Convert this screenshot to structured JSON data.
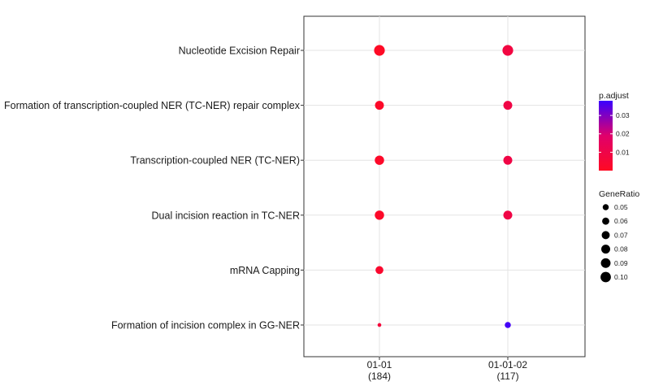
{
  "chart_data": {
    "type": "scatter",
    "categories_y": [
      "Nucleotide Excision Repair",
      "Formation of transcription-coupled NER (TC-NER) repair complex",
      "Transcription-coupled NER (TC-NER)",
      "Dual incision reaction in TC-NER",
      "mRNA Capping",
      "Formation of incision complex in GG-NER"
    ],
    "categories_x": [
      {
        "label": "01-01",
        "count": "(184)"
      },
      {
        "label": "01-01-02",
        "count": "(117)"
      }
    ],
    "points": [
      {
        "y": "Nucleotide Excision Repair",
        "x": "01-01",
        "gene_ratio": 0.105,
        "p_adjust": 0.0005
      },
      {
        "y": "Nucleotide Excision Repair",
        "x": "01-01-02",
        "gene_ratio": 0.105,
        "p_adjust": 0.008
      },
      {
        "y": "Formation of transcription-coupled NER (TC-NER) repair complex",
        "x": "01-01",
        "gene_ratio": 0.08,
        "p_adjust": 0.0015
      },
      {
        "y": "Formation of transcription-coupled NER (TC-NER) repair complex",
        "x": "01-01-02",
        "gene_ratio": 0.08,
        "p_adjust": 0.009
      },
      {
        "y": "Transcription-coupled NER (TC-NER)",
        "x": "01-01",
        "gene_ratio": 0.085,
        "p_adjust": 0.0015
      },
      {
        "y": "Transcription-coupled NER (TC-NER)",
        "x": "01-01-02",
        "gene_ratio": 0.08,
        "p_adjust": 0.009
      },
      {
        "y": "Dual incision reaction in TC-NER",
        "x": "01-01",
        "gene_ratio": 0.085,
        "p_adjust": 0.0015
      },
      {
        "y": "Dual incision reaction in TC-NER",
        "x": "01-01-02",
        "gene_ratio": 0.08,
        "p_adjust": 0.009
      },
      {
        "y": "mRNA Capping",
        "x": "01-01",
        "gene_ratio": 0.068,
        "p_adjust": 0.003
      },
      {
        "y": "Formation of incision complex in GG-NER",
        "x": "01-01",
        "gene_ratio": 0.034,
        "p_adjust": 0.006
      },
      {
        "y": "Formation of incision complex in GG-NER",
        "x": "01-01-02",
        "gene_ratio": 0.05,
        "p_adjust": 0.037
      }
    ],
    "color_legend": {
      "title": "p.adjust",
      "ticks": [
        "0.03",
        "0.02",
        "0.01"
      ],
      "tick_values": [
        0.03,
        0.02,
        0.01
      ],
      "range": [
        0.0,
        0.038
      ],
      "low_color": "#ff0a23",
      "mid_color": "#e0006b",
      "high_color": "#3a00ff"
    },
    "size_legend": {
      "title": "GeneRatio",
      "values": [
        0.05,
        0.06,
        0.07,
        0.08,
        0.09,
        0.1
      ],
      "labels": [
        "0.05",
        "0.06",
        "0.07",
        "0.08",
        "0.09",
        "0.10"
      ],
      "color": "#000000"
    },
    "grid": true,
    "legend_position": "right"
  }
}
